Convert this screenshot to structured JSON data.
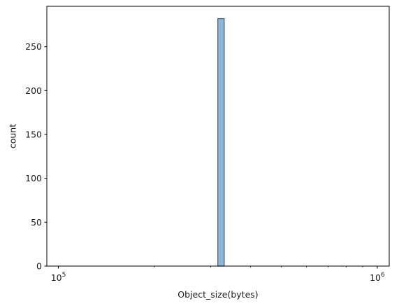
{
  "chart_data": {
    "type": "bar",
    "subtype": "histogram",
    "title": "",
    "xlabel": "Object_size(bytes)",
    "ylabel": "count",
    "x_scale": "log",
    "xlim": [
      92000,
      1090000
    ],
    "ylim": [
      0,
      296
    ],
    "x_ticks": [
      {
        "value": 100000,
        "base": "10",
        "exp": "5"
      },
      {
        "value": 1000000,
        "base": "10",
        "exp": "6"
      }
    ],
    "y_ticks": [
      0,
      50,
      100,
      150,
      200,
      250
    ],
    "bins": {
      "range": [
        100000,
        1000000
      ],
      "count": 50,
      "counts": [
        0,
        0,
        0,
        0,
        0,
        0,
        0,
        0,
        0,
        0,
        0,
        0,
        0,
        0,
        0,
        0,
        0,
        0,
        0,
        0,
        0,
        0,
        0,
        0,
        0,
        282,
        0,
        0,
        0,
        0,
        0,
        0,
        0,
        0,
        0,
        0,
        0,
        0,
        0,
        0,
        0,
        0,
        0,
        0,
        0,
        0,
        0,
        0,
        0,
        0
      ]
    },
    "grid": false,
    "colors": {
      "bar_fill": "#8cb8dc",
      "bar_edge": "#5a6470"
    }
  }
}
